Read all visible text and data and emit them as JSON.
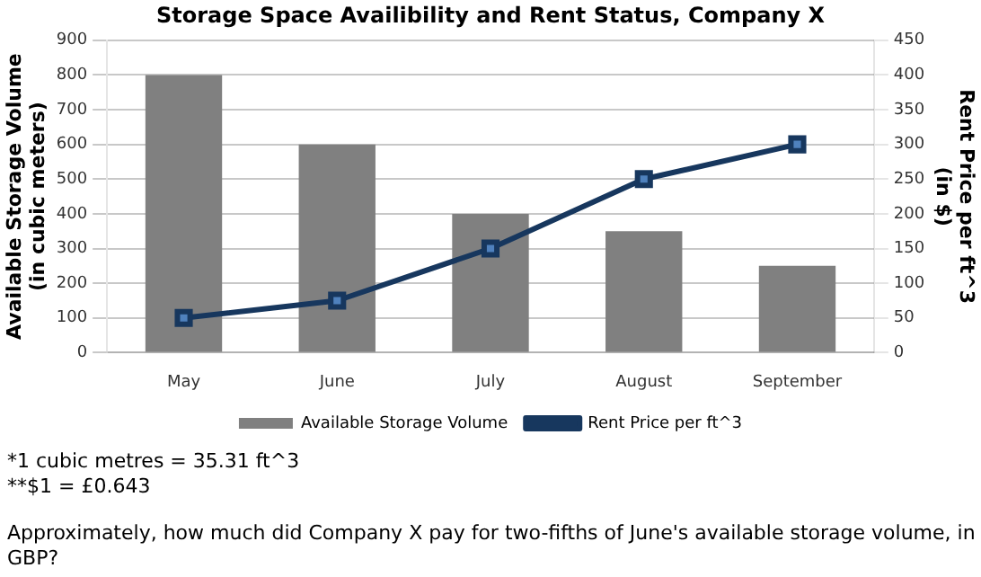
{
  "chart_data": {
    "type": "bar",
    "title": "Storage Space Availibility and Rent Status, Company X",
    "ylabel": "Available Storage Volume\n(in cubic meters)",
    "y2label": "Rent Price per ft^3\n(in $)",
    "categories": [
      "May",
      "June",
      "July",
      "August",
      "September"
    ],
    "series": [
      {
        "name": "Available Storage Volume",
        "color": "#808080",
        "values": [
          800,
          600,
          400,
          350,
          250
        ]
      },
      {
        "name": "Rent Price per ft^3",
        "type": "line",
        "axis": "y2",
        "color": "#17375e",
        "values": [
          50,
          75,
          150,
          250,
          300
        ]
      }
    ],
    "ylim": [
      0,
      900
    ],
    "yticks": [
      0,
      100,
      200,
      300,
      400,
      500,
      600,
      700,
      800,
      900
    ],
    "y2lim": [
      0,
      450
    ],
    "y2ticks": [
      0,
      50,
      100,
      150,
      200,
      250,
      300,
      350,
      400,
      450
    ],
    "grid": "y",
    "legend": "bottom",
    "marker": "square",
    "annotations": [
      "*1 cubic metres = 35.31 ft^3",
      "**$1 = £0.643",
      "Approximately, how much did Company X pay for two-fifths of June's available storage volume, in GBP?"
    ]
  }
}
